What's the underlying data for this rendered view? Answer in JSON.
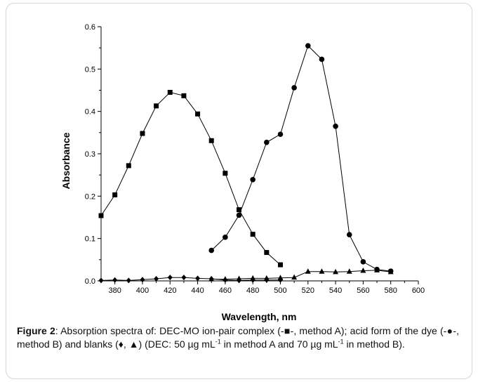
{
  "chart_data": {
    "type": "line",
    "xlabel": "Wavelength, nm",
    "ylabel": "Absorbance",
    "xlim": [
      370,
      600
    ],
    "ylim": [
      0,
      0.6
    ],
    "xticks": [
      380,
      400,
      420,
      440,
      460,
      480,
      500,
      520,
      540,
      560,
      580,
      600
    ],
    "yticks": [
      0.0,
      0.1,
      0.2,
      0.3,
      0.4,
      0.5,
      0.6
    ],
    "ytick_labels": [
      "0.0",
      "0.1",
      "0.2",
      "0.3",
      "0.4",
      "0.5",
      "0.6"
    ],
    "grid": false,
    "series": [
      {
        "marker": "square",
        "x": [
          370,
          380,
          390,
          400,
          410,
          420,
          430,
          440,
          450,
          460,
          470,
          480,
          490,
          500
        ],
        "y": [
          0.154,
          0.203,
          0.272,
          0.348,
          0.413,
          0.445,
          0.437,
          0.394,
          0.331,
          0.254,
          0.168,
          0.11,
          0.067,
          0.038
        ]
      },
      {
        "marker": "circle",
        "x": [
          450,
          460,
          470,
          480,
          490,
          500,
          510,
          520,
          530,
          540,
          550,
          560,
          570,
          580
        ],
        "y": [
          0.072,
          0.103,
          0.155,
          0.239,
          0.327,
          0.346,
          0.456,
          0.555,
          0.523,
          0.365,
          0.109,
          0.045,
          0.027,
          0.023
        ]
      },
      {
        "marker": "diamond",
        "x": [
          370,
          380,
          390,
          400,
          410,
          420,
          430,
          440,
          450,
          460,
          470,
          480,
          490,
          500
        ],
        "y": [
          0.001,
          0.002,
          0.001,
          0.003,
          0.005,
          0.008,
          0.008,
          0.006,
          0.005,
          0.002,
          0.001,
          0.002,
          0.002,
          0.002
        ]
      },
      {
        "marker": "triangle",
        "x": [
          450,
          460,
          470,
          480,
          490,
          500,
          510,
          520,
          530,
          540,
          550,
          560,
          570,
          580
        ],
        "y": [
          0.004,
          0.004,
          0.005,
          0.006,
          0.006,
          0.007,
          0.008,
          0.022,
          0.022,
          0.021,
          0.022,
          0.024,
          0.025,
          0.021
        ]
      }
    ]
  },
  "caption": {
    "label": "Figure 2",
    "text_1": ": Absorption spectra of: DEC-MO ion-pair complex (-■-, method A); acid form of the dye (-●-, method B) and blanks (♦, ▲) (DEC: 50 µg mL",
    "sup_1": "-1",
    "text_2": " in method A and 70 µg mL",
    "sup_2": "-1",
    "text_3": " in method B)."
  }
}
